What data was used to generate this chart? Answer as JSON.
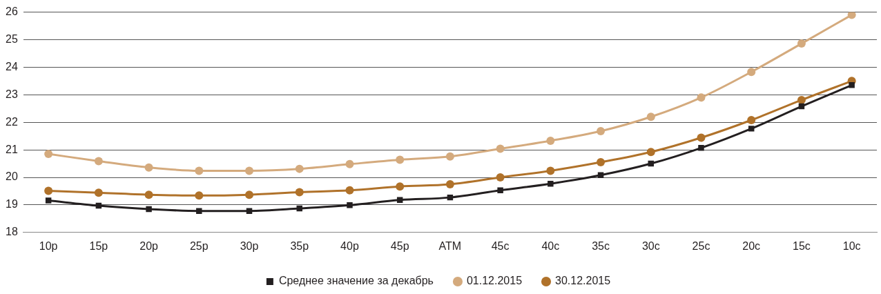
{
  "chart_data": {
    "type": "line",
    "categories": [
      "10p",
      "15p",
      "20p",
      "25p",
      "30p",
      "35p",
      "40p",
      "45p",
      "ATM",
      "45c",
      "40c",
      "35c",
      "30c",
      "25c",
      "20c",
      "15c",
      "10c"
    ],
    "series": [
      {
        "name": "Среднее значение за декабрь",
        "color": "#231f20",
        "marker": "square",
        "values": [
          19.16,
          18.97,
          18.85,
          18.78,
          18.78,
          18.87,
          18.99,
          19.18,
          19.27,
          19.53,
          19.77,
          20.08,
          20.5,
          21.07,
          21.77,
          22.58,
          23.35
        ]
      },
      {
        "name": "01.12.2015",
        "color": "#d4aa7d",
        "marker": "circle",
        "values": [
          20.85,
          20.59,
          20.36,
          20.24,
          20.24,
          20.31,
          20.48,
          20.64,
          20.76,
          21.04,
          21.33,
          21.68,
          22.2,
          22.9,
          23.83,
          24.86,
          25.9
        ]
      },
      {
        "name": "30.12.2015",
        "color": "#b0722a",
        "marker": "circle",
        "values": [
          19.51,
          19.44,
          19.37,
          19.34,
          19.37,
          19.46,
          19.53,
          19.67,
          19.75,
          20.0,
          20.24,
          20.55,
          20.92,
          21.44,
          22.08,
          22.81,
          23.5
        ]
      }
    ],
    "ylim": [
      18,
      26
    ],
    "yticks": [
      18,
      19,
      20,
      21,
      22,
      23,
      24,
      25,
      26
    ],
    "grid": "y",
    "legend": "bottom",
    "line_style": "solid"
  }
}
